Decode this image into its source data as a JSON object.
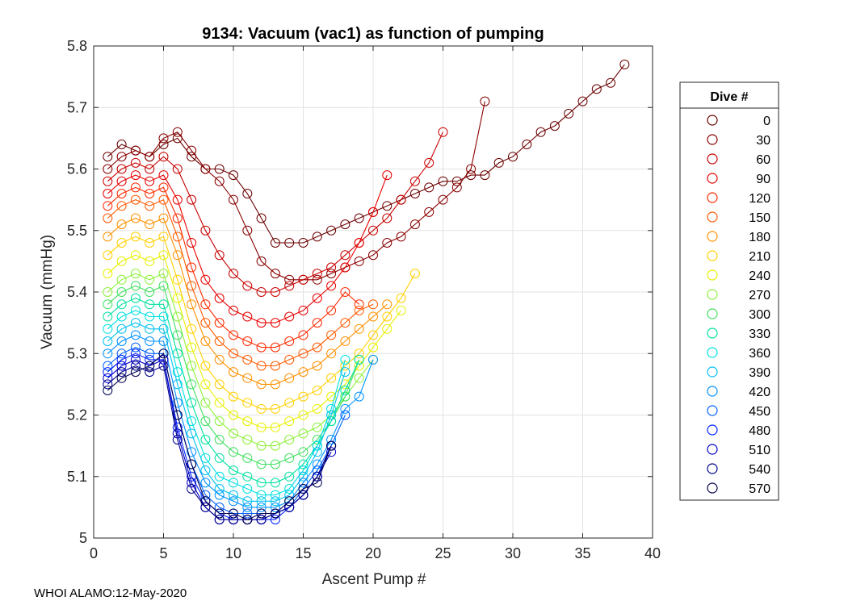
{
  "chart_data": {
    "type": "scatter",
    "title": "9134: Vacuum (vac1) as function of pumping",
    "xlabel": "Ascent Pump #",
    "ylabel": "Vacuum (mmHg)",
    "xlim": [
      0,
      40
    ],
    "ylim": [
      5.0,
      5.8
    ],
    "xticks": [
      "0",
      "5",
      "10",
      "15",
      "20",
      "25",
      "30",
      "35",
      "40"
    ],
    "yticks": [
      "5",
      "5.1",
      "5.2",
      "5.3",
      "5.4",
      "5.5",
      "5.6",
      "5.7",
      "5.8"
    ],
    "grid": true,
    "marker": "open-circle",
    "colormap": "jet",
    "legend": {
      "title": "Dive #",
      "placement": "right",
      "entries": [
        {
          "label": "0",
          "color": "#6b0000"
        },
        {
          "label": "30",
          "color": "#8a0000"
        },
        {
          "label": "60",
          "color": "#c80000"
        },
        {
          "label": "90",
          "color": "#e80000"
        },
        {
          "label": "120",
          "color": "#ff2a00"
        },
        {
          "label": "150",
          "color": "#ff5a00"
        },
        {
          "label": "180",
          "color": "#ff9000"
        },
        {
          "label": "210",
          "color": "#ffd000"
        },
        {
          "label": "240",
          "color": "#e8f000"
        },
        {
          "label": "270",
          "color": "#8ef03a"
        },
        {
          "label": "300",
          "color": "#40e060"
        },
        {
          "label": "330",
          "color": "#00e0a0"
        },
        {
          "label": "360",
          "color": "#00e0e0"
        },
        {
          "label": "390",
          "color": "#00c0f0"
        },
        {
          "label": "420",
          "color": "#0090ff"
        },
        {
          "label": "450",
          "color": "#0060ff"
        },
        {
          "label": "480",
          "color": "#0020ff"
        },
        {
          "label": "510",
          "color": "#0000c8"
        },
        {
          "label": "540",
          "color": "#000090"
        },
        {
          "label": "570",
          "color": "#000050"
        }
      ]
    },
    "series": [
      {
        "name": "0",
        "color": "#6b0000",
        "x": [
          1,
          2,
          3,
          4,
          5,
          6,
          7,
          8,
          9,
          10,
          11,
          12,
          13,
          14,
          15,
          16,
          17,
          18,
          19,
          20,
          21,
          22,
          23,
          24,
          25,
          26,
          27,
          28,
          29,
          30,
          31,
          32,
          33,
          34,
          35,
          36,
          37,
          38
        ],
        "y": [
          5.62,
          5.64,
          5.63,
          5.62,
          5.64,
          5.65,
          5.62,
          5.6,
          5.6,
          5.59,
          5.56,
          5.52,
          5.48,
          5.48,
          5.48,
          5.49,
          5.5,
          5.51,
          5.52,
          5.53,
          5.54,
          5.55,
          5.56,
          5.57,
          5.58,
          5.58,
          5.59,
          5.59,
          5.61,
          5.62,
          5.64,
          5.66,
          5.67,
          5.69,
          5.71,
          5.73,
          5.74,
          5.77
        ]
      },
      {
        "name": "30",
        "color": "#8a0000",
        "x": [
          1,
          2,
          3,
          4,
          5,
          6,
          7,
          8,
          9,
          10,
          11,
          12,
          13,
          14,
          15,
          16,
          17,
          18,
          19,
          20,
          21,
          22,
          23,
          24,
          25,
          26,
          27,
          28
        ],
        "y": [
          5.6,
          5.62,
          5.63,
          5.62,
          5.65,
          5.66,
          5.63,
          5.6,
          5.58,
          5.55,
          5.5,
          5.45,
          5.43,
          5.42,
          5.42,
          5.42,
          5.43,
          5.44,
          5.45,
          5.46,
          5.48,
          5.49,
          5.51,
          5.53,
          5.55,
          5.57,
          5.6,
          5.71
        ]
      },
      {
        "name": "60",
        "color": "#c80000",
        "x": [
          1,
          2,
          3,
          4,
          5,
          6,
          7,
          8,
          9,
          10,
          11,
          12,
          13,
          14,
          15,
          16,
          17,
          18,
          19,
          20,
          21,
          22,
          23,
          24,
          25
        ],
        "y": [
          5.58,
          5.6,
          5.61,
          5.6,
          5.62,
          5.6,
          5.55,
          5.5,
          5.46,
          5.43,
          5.41,
          5.4,
          5.4,
          5.41,
          5.42,
          5.43,
          5.44,
          5.46,
          5.48,
          5.5,
          5.52,
          5.55,
          5.58,
          5.61,
          5.66
        ]
      },
      {
        "name": "90",
        "color": "#e80000",
        "x": [
          1,
          2,
          3,
          4,
          5,
          6,
          7,
          8,
          9,
          10,
          11,
          12,
          13,
          14,
          15,
          16,
          17,
          18,
          19,
          20,
          21
        ],
        "y": [
          5.56,
          5.58,
          5.59,
          5.58,
          5.59,
          5.55,
          5.48,
          5.42,
          5.39,
          5.37,
          5.36,
          5.35,
          5.35,
          5.36,
          5.37,
          5.39,
          5.41,
          5.44,
          5.48,
          5.53,
          5.59
        ]
      },
      {
        "name": "120",
        "color": "#ff2a00",
        "x": [
          1,
          2,
          3,
          4,
          5,
          6,
          7,
          8,
          9,
          10,
          11,
          12,
          13,
          14,
          15,
          16,
          17,
          18,
          19
        ],
        "y": [
          5.54,
          5.56,
          5.57,
          5.56,
          5.57,
          5.52,
          5.44,
          5.38,
          5.35,
          5.33,
          5.32,
          5.31,
          5.31,
          5.32,
          5.33,
          5.35,
          5.37,
          5.4,
          5.38
        ]
      },
      {
        "name": "150",
        "color": "#ff5a00",
        "x": [
          1,
          2,
          3,
          4,
          5,
          6,
          7,
          8,
          9,
          10,
          11,
          12,
          13,
          14,
          15,
          16,
          17,
          18,
          19,
          20
        ],
        "y": [
          5.52,
          5.54,
          5.55,
          5.54,
          5.55,
          5.49,
          5.41,
          5.35,
          5.32,
          5.3,
          5.29,
          5.28,
          5.28,
          5.29,
          5.3,
          5.31,
          5.33,
          5.35,
          5.37,
          5.38
        ]
      },
      {
        "name": "180",
        "color": "#ff9000",
        "x": [
          1,
          2,
          3,
          4,
          5,
          6,
          7,
          8,
          9,
          10,
          11,
          12,
          13,
          14,
          15,
          16,
          17,
          18,
          19,
          20,
          21
        ],
        "y": [
          5.49,
          5.51,
          5.52,
          5.51,
          5.52,
          5.46,
          5.38,
          5.32,
          5.29,
          5.27,
          5.26,
          5.25,
          5.25,
          5.26,
          5.27,
          5.28,
          5.3,
          5.32,
          5.34,
          5.36,
          5.38
        ]
      },
      {
        "name": "210",
        "color": "#ffd000",
        "x": [
          1,
          2,
          3,
          4,
          5,
          6,
          7,
          8,
          9,
          10,
          11,
          12,
          13,
          14,
          15,
          16,
          17,
          18,
          19,
          20,
          21,
          22,
          23
        ],
        "y": [
          5.46,
          5.48,
          5.49,
          5.48,
          5.49,
          5.42,
          5.34,
          5.28,
          5.25,
          5.23,
          5.22,
          5.21,
          5.21,
          5.22,
          5.23,
          5.24,
          5.26,
          5.28,
          5.3,
          5.33,
          5.36,
          5.39,
          5.43
        ]
      },
      {
        "name": "240",
        "color": "#e8f000",
        "x": [
          1,
          2,
          3,
          4,
          5,
          6,
          7,
          8,
          9,
          10,
          11,
          12,
          13,
          14,
          15,
          16,
          17,
          18,
          19,
          20,
          21,
          22
        ],
        "y": [
          5.43,
          5.45,
          5.46,
          5.45,
          5.46,
          5.39,
          5.31,
          5.25,
          5.22,
          5.2,
          5.19,
          5.18,
          5.18,
          5.19,
          5.2,
          5.21,
          5.23,
          5.25,
          5.28,
          5.31,
          5.34,
          5.37
        ]
      },
      {
        "name": "270",
        "color": "#8ef03a",
        "x": [
          1,
          2,
          3,
          4,
          5,
          6,
          7,
          8,
          9,
          10,
          11,
          12,
          13,
          14,
          15,
          16,
          17,
          18,
          19,
          20
        ],
        "y": [
          5.4,
          5.42,
          5.43,
          5.42,
          5.43,
          5.36,
          5.28,
          5.22,
          5.19,
          5.17,
          5.16,
          5.15,
          5.15,
          5.16,
          5.17,
          5.18,
          5.2,
          5.23,
          5.26,
          5.29
        ]
      },
      {
        "name": "300",
        "color": "#40e060",
        "x": [
          1,
          2,
          3,
          4,
          5,
          6,
          7,
          8,
          9,
          10,
          11,
          12,
          13,
          14,
          15,
          16,
          17,
          18,
          19
        ],
        "y": [
          5.38,
          5.4,
          5.41,
          5.4,
          5.41,
          5.33,
          5.25,
          5.19,
          5.16,
          5.14,
          5.13,
          5.12,
          5.12,
          5.13,
          5.14,
          5.16,
          5.19,
          5.23,
          5.29
        ]
      },
      {
        "name": "330",
        "color": "#00e0a0",
        "x": [
          1,
          2,
          3,
          4,
          5,
          6,
          7,
          8,
          9,
          10,
          11,
          12,
          13,
          14,
          15,
          16,
          17,
          18,
          19
        ],
        "y": [
          5.36,
          5.38,
          5.39,
          5.38,
          5.38,
          5.3,
          5.22,
          5.16,
          5.13,
          5.11,
          5.1,
          5.09,
          5.09,
          5.1,
          5.12,
          5.15,
          5.19,
          5.24,
          5.29
        ]
      },
      {
        "name": "360",
        "color": "#00e0e0",
        "x": [
          1,
          2,
          3,
          4,
          5,
          6,
          7,
          8,
          9,
          10,
          11,
          12,
          13,
          14,
          15,
          16,
          17,
          18
        ],
        "y": [
          5.34,
          5.36,
          5.37,
          5.36,
          5.36,
          5.27,
          5.19,
          5.13,
          5.1,
          5.09,
          5.08,
          5.07,
          5.07,
          5.08,
          5.11,
          5.15,
          5.21,
          5.29
        ]
      },
      {
        "name": "390",
        "color": "#00c0f0",
        "x": [
          1,
          2,
          3,
          4,
          5,
          6,
          7,
          8,
          9,
          10,
          11,
          12,
          13,
          14,
          15,
          16,
          17,
          18
        ],
        "y": [
          5.32,
          5.34,
          5.35,
          5.34,
          5.34,
          5.25,
          5.17,
          5.11,
          5.08,
          5.07,
          5.06,
          5.06,
          5.06,
          5.07,
          5.1,
          5.14,
          5.2,
          5.27
        ]
      },
      {
        "name": "420",
        "color": "#0090ff",
        "x": [
          1,
          2,
          3,
          4,
          5,
          6,
          7,
          8,
          9,
          10,
          11,
          12,
          13,
          14,
          15,
          16,
          17,
          18,
          19,
          20
        ],
        "y": [
          5.3,
          5.32,
          5.33,
          5.32,
          5.32,
          5.22,
          5.14,
          5.09,
          5.07,
          5.06,
          5.05,
          5.05,
          5.05,
          5.06,
          5.09,
          5.12,
          5.16,
          5.21,
          5.23,
          5.29
        ]
      },
      {
        "name": "450",
        "color": "#0060ff",
        "x": [
          1,
          2,
          3,
          4,
          5,
          6,
          7,
          8,
          9,
          10,
          11,
          12,
          13,
          14,
          15,
          16,
          17,
          18
        ],
        "y": [
          5.28,
          5.3,
          5.31,
          5.3,
          5.3,
          5.2,
          5.12,
          5.07,
          5.05,
          5.04,
          5.04,
          5.04,
          5.04,
          5.05,
          5.08,
          5.11,
          5.15,
          5.2
        ]
      },
      {
        "name": "480",
        "color": "#0020ff",
        "x": [
          1,
          2,
          3,
          4,
          5,
          6,
          7,
          8,
          9,
          10,
          11,
          12,
          13,
          14,
          15,
          16,
          17
        ],
        "y": [
          5.27,
          5.29,
          5.3,
          5.29,
          5.29,
          5.18,
          5.1,
          5.06,
          5.04,
          5.03,
          5.03,
          5.03,
          5.03,
          5.05,
          5.07,
          5.1,
          5.15
        ]
      },
      {
        "name": "510",
        "color": "#0000c8",
        "x": [
          1,
          2,
          3,
          4,
          5,
          6,
          7,
          8,
          9,
          10,
          11,
          12,
          13,
          14,
          15,
          16,
          17
        ],
        "y": [
          5.26,
          5.28,
          5.29,
          5.28,
          5.29,
          5.17,
          5.09,
          5.05,
          5.03,
          5.03,
          5.03,
          5.03,
          5.04,
          5.05,
          5.07,
          5.1,
          5.14
        ]
      },
      {
        "name": "540",
        "color": "#000090",
        "x": [
          1,
          2,
          3,
          4,
          5,
          6,
          7,
          8,
          9,
          10,
          11,
          12,
          13,
          14,
          15,
          16,
          17
        ],
        "y": [
          5.25,
          5.27,
          5.28,
          5.27,
          5.28,
          5.16,
          5.08,
          5.05,
          5.03,
          5.03,
          5.03,
          5.03,
          5.04,
          5.05,
          5.07,
          5.1,
          5.15
        ]
      },
      {
        "name": "570",
        "color": "#000050",
        "x": [
          1,
          2,
          3,
          4,
          5,
          6,
          7,
          8,
          9,
          10,
          11,
          12,
          13,
          14,
          15,
          16,
          17
        ],
        "y": [
          5.24,
          5.26,
          5.27,
          5.28,
          5.3,
          5.2,
          5.12,
          5.06,
          5.04,
          5.04,
          5.03,
          5.04,
          5.04,
          5.06,
          5.08,
          5.09,
          5.15
        ]
      }
    ]
  },
  "footer": "WHOI ALAMO:12-May-2020"
}
